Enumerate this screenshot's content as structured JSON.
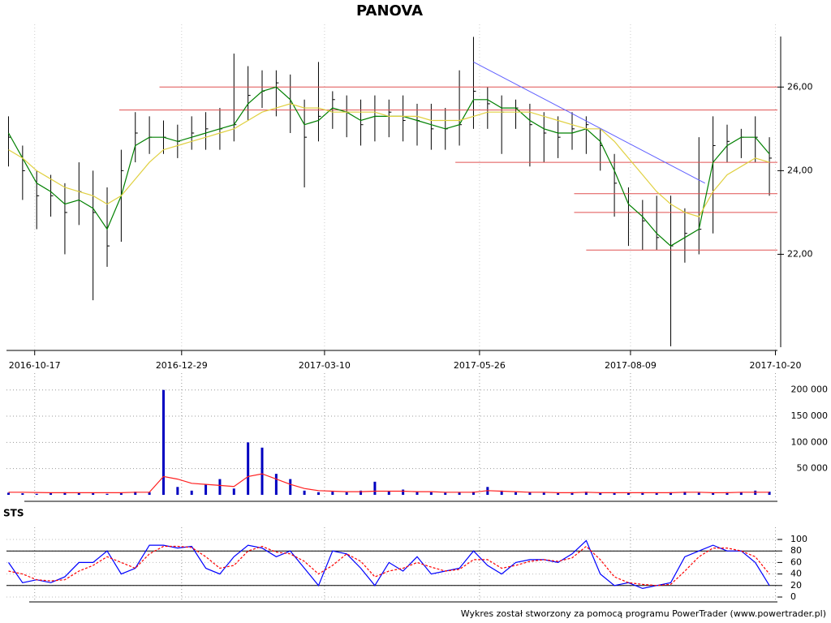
{
  "chart_data": {
    "type": "ohlc",
    "title": "PANOVA",
    "x": [
      "2016-10-04",
      "2016-10-11",
      "2016-10-18",
      "2016-10-25",
      "2016-11-01",
      "2016-11-08",
      "2016-11-15",
      "2016-11-22",
      "2016-11-29",
      "2016-12-06",
      "2016-12-13",
      "2016-12-20",
      "2016-12-27",
      "2017-01-03",
      "2017-01-10",
      "2017-01-17",
      "2017-01-24",
      "2017-01-31",
      "2017-02-07",
      "2017-02-14",
      "2017-02-21",
      "2017-02-28",
      "2017-03-07",
      "2017-03-14",
      "2017-03-21",
      "2017-03-28",
      "2017-04-04",
      "2017-04-11",
      "2017-04-18",
      "2017-04-25",
      "2017-05-02",
      "2017-05-09",
      "2017-05-16",
      "2017-05-23",
      "2017-05-30",
      "2017-06-06",
      "2017-06-13",
      "2017-06-20",
      "2017-06-27",
      "2017-07-04",
      "2017-07-11",
      "2017-07-18",
      "2017-07-25",
      "2017-08-01",
      "2017-08-08",
      "2017-08-15",
      "2017-08-22",
      "2017-08-29",
      "2017-09-05",
      "2017-09-12",
      "2017-09-19",
      "2017-09-26",
      "2017-10-03",
      "2017-10-10",
      "2017-10-17"
    ],
    "xlim": [
      "2016-10-03",
      "2017-10-21"
    ],
    "xticks": [
      "2016-10-17",
      "2016-12-29",
      "2017-03-10",
      "2017-05-26",
      "2017-08-09",
      "2017-10-20"
    ],
    "ylim": [
      19.7,
      27.5
    ],
    "yticks": [
      {
        "value": 22,
        "label": "22,00"
      },
      {
        "value": 24,
        "label": "24,00"
      },
      {
        "value": 26,
        "label": "26,00"
      }
    ],
    "color": "#000000",
    "high": [
      25.3,
      24.6,
      24.0,
      23.9,
      23.7,
      24.2,
      24.0,
      23.6,
      24.5,
      25.4,
      25.3,
      25.2,
      25.1,
      25.3,
      25.4,
      25.5,
      26.8,
      26.5,
      26.4,
      26.4,
      26.3,
      25.7,
      26.6,
      25.9,
      25.8,
      25.7,
      25.8,
      25.7,
      25.8,
      25.6,
      25.6,
      25.5,
      26.4,
      27.2,
      26.0,
      25.8,
      25.7,
      25.6,
      25.4,
      25.3,
      25.4,
      25.3,
      25.0,
      24.4,
      23.6,
      23.3,
      23.4,
      23.4,
      23.1,
      24.8,
      25.3,
      25.1,
      25.0,
      25.3,
      24.8
    ],
    "low": [
      24.1,
      23.3,
      22.6,
      22.9,
      22.0,
      22.7,
      20.9,
      21.7,
      22.3,
      24.2,
      24.4,
      24.4,
      24.3,
      24.5,
      24.5,
      24.5,
      24.7,
      25.2,
      25.5,
      25.3,
      24.9,
      23.6,
      24.7,
      25.0,
      24.8,
      24.6,
      24.7,
      24.8,
      24.7,
      24.6,
      24.5,
      24.5,
      24.6,
      25.0,
      25.0,
      24.4,
      25.0,
      24.1,
      24.2,
      24.3,
      24.5,
      24.4,
      24.0,
      22.9,
      22.2,
      22.1,
      22.1,
      19.8,
      21.8,
      22.0,
      22.5,
      24.2,
      24.3,
      24.2,
      23.4
    ],
    "close": [
      24.8,
      24.0,
      23.4,
      23.4,
      23.0,
      23.5,
      23.0,
      22.2,
      24.0,
      24.9,
      24.8,
      24.8,
      24.7,
      24.9,
      25.0,
      25.0,
      25.1,
      25.8,
      25.9,
      26.1,
      25.6,
      24.8,
      25.3,
      25.7,
      25.4,
      25.1,
      25.3,
      25.4,
      25.2,
      25.2,
      25.0,
      25.0,
      25.1,
      25.9,
      25.6,
      25.4,
      25.5,
      25.1,
      24.9,
      24.8,
      25.0,
      25.1,
      24.6,
      23.7,
      23.0,
      22.8,
      22.4,
      22.2,
      22.5,
      22.6,
      24.6,
      24.7,
      24.8,
      24.8,
      24.3
    ],
    "lines": [
      {
        "color": "#008000",
        "values": [
          24.9,
          24.3,
          23.7,
          23.5,
          23.2,
          23.3,
          23.1,
          22.6,
          23.4,
          24.6,
          24.8,
          24.8,
          24.7,
          24.8,
          24.9,
          25.0,
          25.1,
          25.6,
          25.9,
          26.0,
          25.7,
          25.1,
          25.2,
          25.5,
          25.4,
          25.2,
          25.3,
          25.3,
          25.3,
          25.2,
          25.1,
          25.0,
          25.1,
          25.7,
          25.7,
          25.5,
          25.5,
          25.2,
          25.0,
          24.9,
          24.9,
          25.0,
          24.7,
          24.0,
          23.2,
          22.9,
          22.5,
          22.2,
          22.4,
          22.6,
          24.2,
          24.6,
          24.8,
          24.8,
          24.4
        ]
      },
      {
        "color": "#e0d040",
        "values": [
          24.5,
          24.3,
          24.0,
          23.8,
          23.6,
          23.5,
          23.4,
          23.2,
          23.4,
          23.8,
          24.2,
          24.5,
          24.6,
          24.7,
          24.8,
          24.9,
          25.0,
          25.2,
          25.4,
          25.5,
          25.6,
          25.5,
          25.5,
          25.4,
          25.4,
          25.4,
          25.4,
          25.3,
          25.3,
          25.3,
          25.2,
          25.2,
          25.2,
          25.3,
          25.4,
          25.4,
          25.4,
          25.4,
          25.3,
          25.2,
          25.1,
          25.0,
          25.0,
          24.7,
          24.3,
          23.9,
          23.5,
          23.2,
          23.0,
          22.9,
          23.5,
          23.9,
          24.1,
          24.3,
          24.2
        ]
      }
    ],
    "hline_color": "#e05050",
    "hlines": [
      {
        "value": 26.0,
        "from": "2016-12-18",
        "to": "2017-10-21"
      },
      {
        "value": 25.45,
        "from": "2016-11-28",
        "to": "2017-10-21"
      },
      {
        "value": 24.2,
        "from": "2017-05-14",
        "to": "2017-10-21"
      },
      {
        "value": 23.45,
        "from": "2017-07-12",
        "to": "2017-10-21"
      },
      {
        "value": 23.0,
        "from": "2017-07-12",
        "to": "2017-10-21"
      },
      {
        "value": 22.1,
        "from": "2017-07-18",
        "to": "2017-10-21"
      }
    ],
    "trendline": {
      "color": "#6060ff",
      "from": {
        "x": "2017-05-23",
        "y": 26.6
      },
      "to": {
        "x": "2017-09-15",
        "y": 23.7
      }
    },
    "volume": {
      "type": "bar",
      "color": "#0000c0",
      "values": [
        4000,
        3000,
        2000,
        3000,
        5000,
        4000,
        3000,
        2000,
        3000,
        6000,
        5000,
        200000,
        15000,
        8000,
        20000,
        30000,
        12000,
        100000,
        90000,
        40000,
        30000,
        8000,
        5000,
        6000,
        5000,
        8000,
        25000,
        7000,
        10000,
        6000,
        5000,
        4000,
        5000,
        6000,
        15000,
        8000,
        5000,
        5000,
        4000,
        3000,
        5000,
        6000,
        4000,
        3000,
        4000,
        5000,
        3000,
        5000,
        6000,
        4000,
        4000,
        5000,
        5000,
        8000,
        6000
      ],
      "ma_color": "#ff2020",
      "ma": [
        5000,
        5000,
        4500,
        4000,
        4000,
        4000,
        4000,
        4000,
        4000,
        5000,
        5000,
        35000,
        30000,
        22000,
        20000,
        18000,
        16000,
        35000,
        40000,
        30000,
        20000,
        12000,
        8000,
        7000,
        6000,
        6000,
        7000,
        7000,
        7000,
        6000,
        6000,
        5000,
        5000,
        5000,
        8000,
        7000,
        6000,
        5000,
        5000,
        4000,
        4000,
        5000,
        4000,
        4000,
        4000,
        4000,
        4000,
        4000,
        5000,
        5000,
        4000,
        4000,
        5000,
        5000,
        5000
      ],
      "ylim": [
        0,
        232000
      ],
      "yticks": [
        {
          "value": 50000,
          "label": "50 000"
        },
        {
          "value": 100000,
          "label": "100 000"
        },
        {
          "value": 150000,
          "label": "150 000"
        },
        {
          "value": 200000,
          "label": "200 000"
        }
      ]
    },
    "sts": {
      "type": "line",
      "label": "STS",
      "ylim": [
        0,
        100
      ],
      "yticks": [
        0,
        20,
        40,
        60,
        80,
        100
      ],
      "ref_lines": [
        20,
        80
      ],
      "series": [
        {
          "color": "#0000ff",
          "values": [
            60,
            25,
            30,
            25,
            35,
            60,
            60,
            80,
            40,
            50,
            90,
            90,
            85,
            88,
            50,
            40,
            70,
            90,
            85,
            70,
            80,
            50,
            20,
            80,
            75,
            50,
            20,
            60,
            45,
            70,
            40,
            45,
            50,
            80,
            55,
            40,
            60,
            65,
            65,
            60,
            75,
            98,
            40,
            20,
            25,
            15,
            20,
            25,
            70,
            80,
            90,
            80,
            80,
            60,
            20
          ]
        },
        {
          "color": "#ff0000",
          "values": [
            45,
            40,
            30,
            28,
            30,
            45,
            55,
            70,
            60,
            50,
            75,
            88,
            88,
            86,
            70,
            50,
            55,
            80,
            88,
            78,
            75,
            62,
            40,
            55,
            75,
            62,
            35,
            45,
            50,
            60,
            52,
            45,
            48,
            65,
            65,
            50,
            55,
            62,
            65,
            62,
            68,
            88,
            65,
            35,
            25,
            22,
            20,
            22,
            45,
            70,
            85,
            85,
            80,
            70,
            40
          ]
        }
      ]
    }
  },
  "footer": "Wykres został stworzony za pomocą programu PowerTrader (www.powertrader.pl)"
}
